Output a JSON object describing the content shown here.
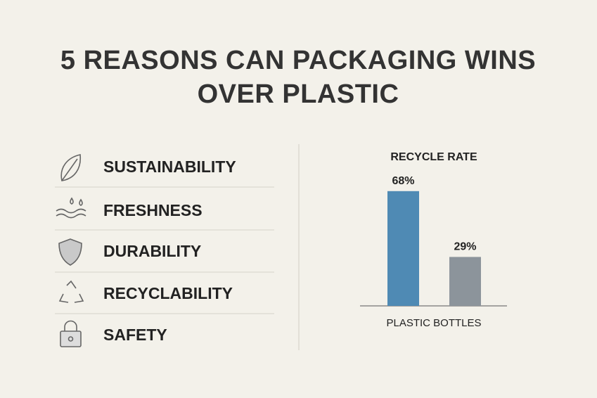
{
  "title": "5 REASONS CAN PACKAGING WINS OVER PLASTIC",
  "reasons": [
    "SUSTAINABILITY",
    "FRESHNESS",
    "DURABILITY",
    "RECYCLABILITY",
    "SAFETY"
  ],
  "chart_data": {
    "type": "bar",
    "title": "RECYCLE RATE",
    "xlabel": "PLASTIC BOTTLES",
    "categories": [
      null,
      null
    ],
    "values": [
      68,
      29
    ],
    "value_labels": [
      "68%",
      "29%"
    ],
    "colors": [
      "#4f8ab4",
      "#8c949b"
    ]
  }
}
